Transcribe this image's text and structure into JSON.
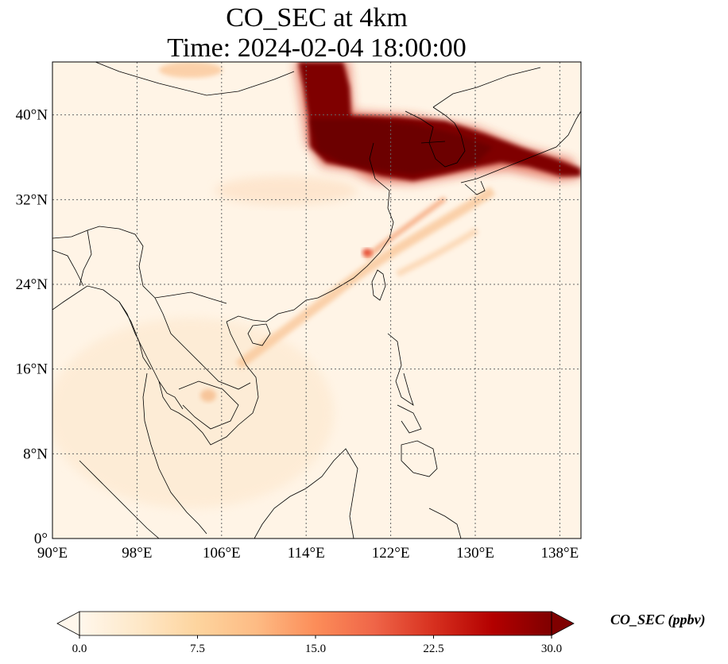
{
  "title": {
    "line1": "CO_SEC at 4km",
    "line2": "Time: 2024-02-04 18:00:00"
  },
  "map": {
    "lon_range": [
      90,
      140
    ],
    "lat_range": [
      0,
      45
    ],
    "lon_ticks": [
      90,
      98,
      106,
      114,
      122,
      130,
      138
    ],
    "lon_tick_labels": [
      "90°E",
      "98°E",
      "106°E",
      "114°E",
      "122°E",
      "130°E",
      "138°E"
    ],
    "lat_ticks": [
      0,
      8,
      16,
      24,
      32,
      40
    ],
    "lat_tick_labels": [
      "0°",
      "8°N",
      "16°N",
      "24°N",
      "32°N",
      "40°N"
    ],
    "gridlines": "dotted",
    "background_color": "#fff4e6",
    "plume_color_high": "#7f0000",
    "plume_color_mid": "#f7a86a"
  },
  "colorbar": {
    "label": "CO_SEC (ppbv)",
    "range": [
      0,
      30
    ],
    "ticks": [
      0,
      7.5,
      15,
      22.5,
      30
    ],
    "tick_labels": [
      "0.0",
      "7.5",
      "15.0",
      "22.5",
      "30.0"
    ],
    "extend": "both",
    "colormap": "OrRd",
    "colors": [
      "#fff7ec",
      "#fee8c8",
      "#fdd49e",
      "#fdbb84",
      "#fc8d59",
      "#ef6548",
      "#d7301f",
      "#b30000",
      "#7f0000"
    ]
  }
}
